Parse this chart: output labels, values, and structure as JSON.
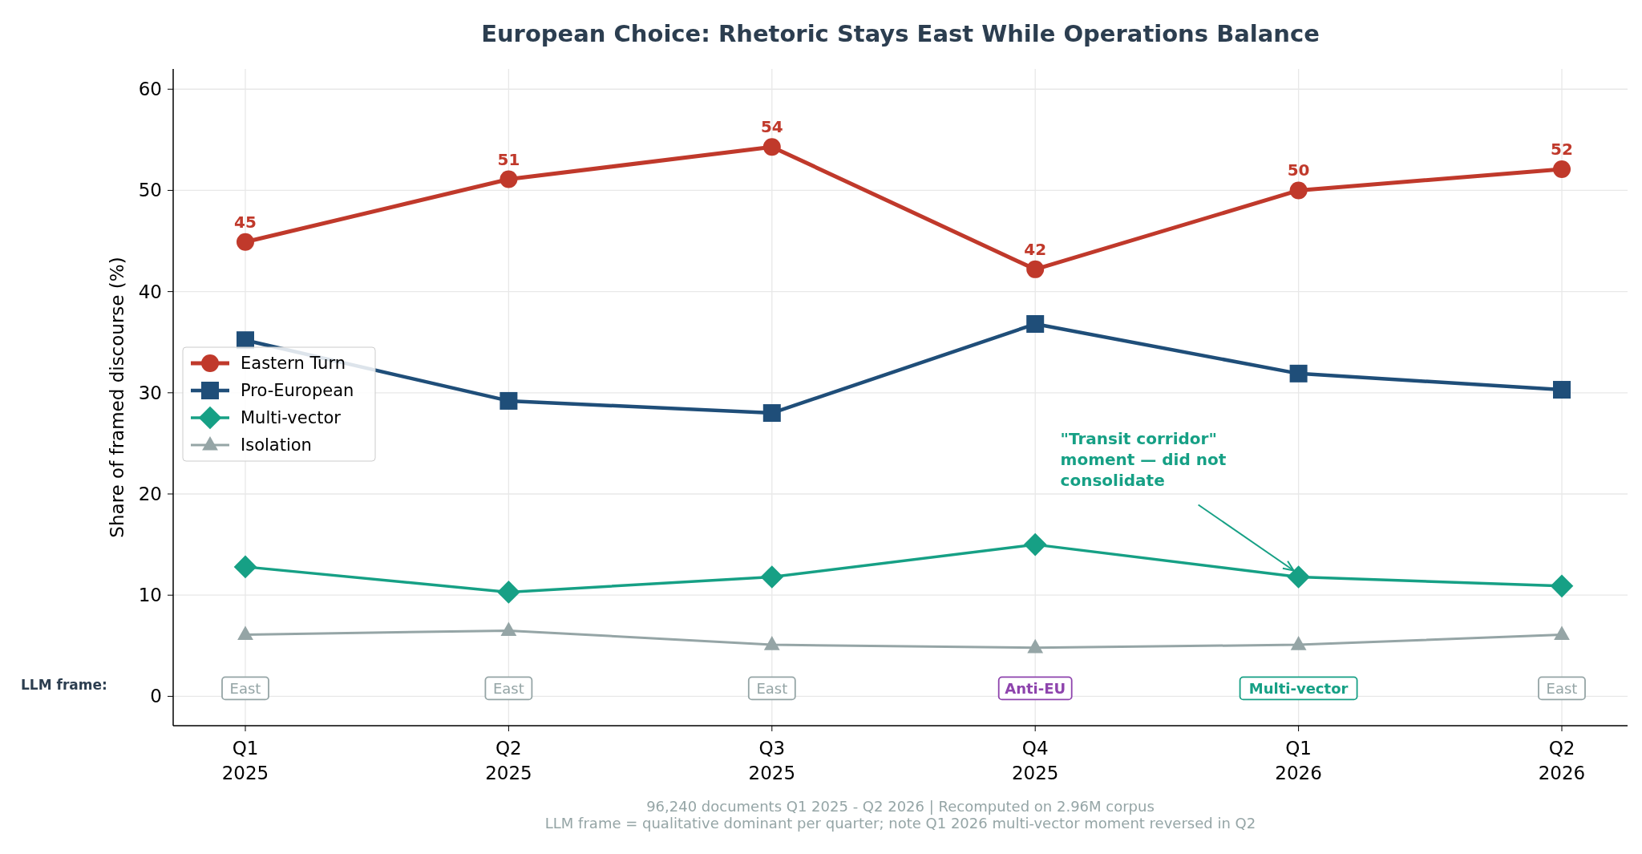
{
  "chart_data": {
    "type": "line",
    "title": "European Choice: Rhetoric Stays East While Operations Balance",
    "ylabel": "Share of framed discourse (%)",
    "categories": [
      "Q1 2025",
      "Q2 2025",
      "Q3 2025",
      "Q4 2025",
      "Q1 2026",
      "Q2 2026"
    ],
    "series": [
      {
        "name": "Eastern Turn",
        "color": "#c0392b",
        "marker": "circle",
        "values": [
          44.9,
          51.1,
          54.3,
          42.2,
          50.0,
          52.1
        ],
        "value_labels": [
          "45",
          "51",
          "54",
          "42",
          "50",
          "52"
        ]
      },
      {
        "name": "Pro-European",
        "color": "#1f4e79",
        "marker": "square",
        "values": [
          35.2,
          29.2,
          28.0,
          36.8,
          31.9,
          30.3
        ]
      },
      {
        "name": "Multi-vector",
        "color": "#16a085",
        "marker": "diamond",
        "values": [
          12.8,
          10.3,
          11.8,
          15.0,
          11.8,
          10.9
        ]
      },
      {
        "name": "Isolation",
        "color": "#95a5a6",
        "marker": "triangle",
        "values": [
          6.1,
          6.5,
          5.1,
          4.8,
          5.1,
          6.1
        ]
      }
    ],
    "ylim": [
      -2.9,
      62
    ],
    "yticks": [
      0,
      10,
      20,
      30,
      40,
      50,
      60
    ],
    "grid": true,
    "legend": "left",
    "annotations": [
      "LLM frame:",
      "East",
      "East",
      "East",
      "Anti-EU",
      "Multi-vector",
      "East",
      "\"Transit corridor\" moment — did not consolidate",
      "96,240 documents Q1 2025 - Q2 2026  |  Recomputed on 2.96M corpus",
      "LLM frame = qualitative dominant per quarter; note Q1 2026 multi-vector moment reversed in Q2"
    ]
  }
}
